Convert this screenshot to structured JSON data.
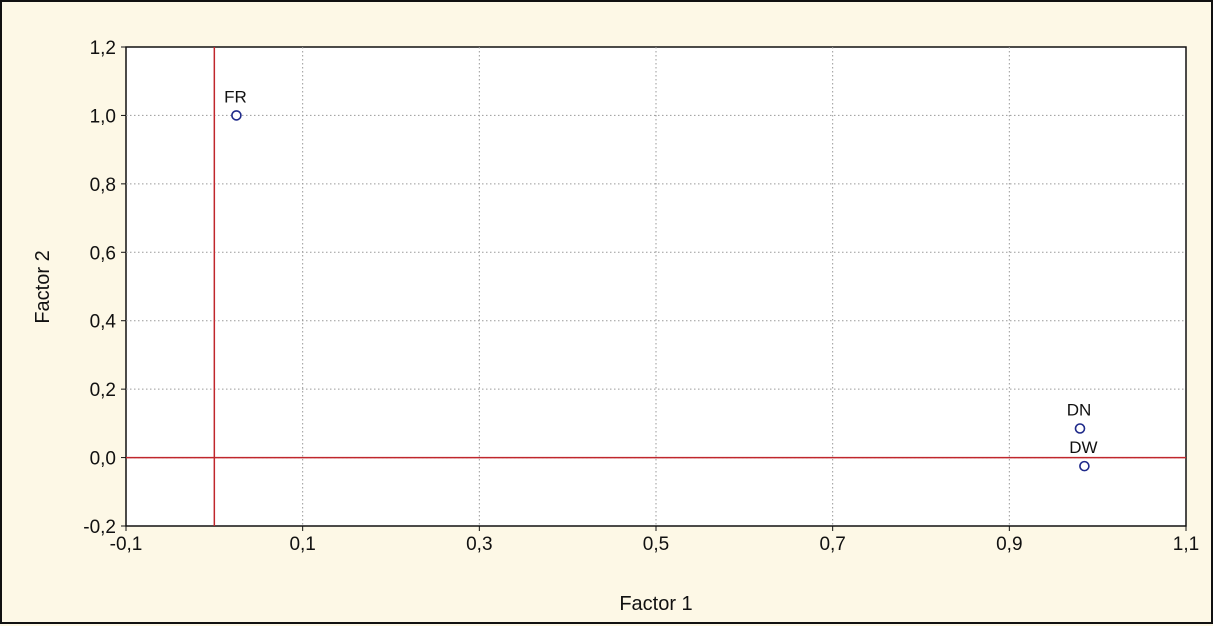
{
  "chart_data": {
    "type": "scatter",
    "title": "",
    "xlabel": "Factor 1",
    "ylabel": "Factor 2",
    "xlim": [
      -0.1,
      1.1
    ],
    "ylim": [
      -0.2,
      1.2
    ],
    "x_ticks": [
      -0.1,
      0.1,
      0.3,
      0.5,
      0.7,
      0.9,
      1.1
    ],
    "x_tick_labels": [
      "-0,1",
      "0,1",
      "0,3",
      "0,5",
      "0,7",
      "0,9",
      "1,1"
    ],
    "y_ticks": [
      -0.2,
      0.0,
      0.2,
      0.4,
      0.6,
      0.8,
      1.0,
      1.2
    ],
    "y_tick_labels": [
      "-0,2",
      "0,0",
      "0,2",
      "0,4",
      "0,6",
      "0,8",
      "1,0",
      "1,2"
    ],
    "grid": true,
    "reference_lines": {
      "x": 0,
      "y": 0,
      "color": "#c0262c"
    },
    "marker_color": "#1f2a8a",
    "points": [
      {
        "label": "FR",
        "x": 0.025,
        "y": 1.0
      },
      {
        "label": "DN",
        "x": 0.98,
        "y": 0.085
      },
      {
        "label": "DW",
        "x": 0.985,
        "y": -0.025
      }
    ]
  }
}
